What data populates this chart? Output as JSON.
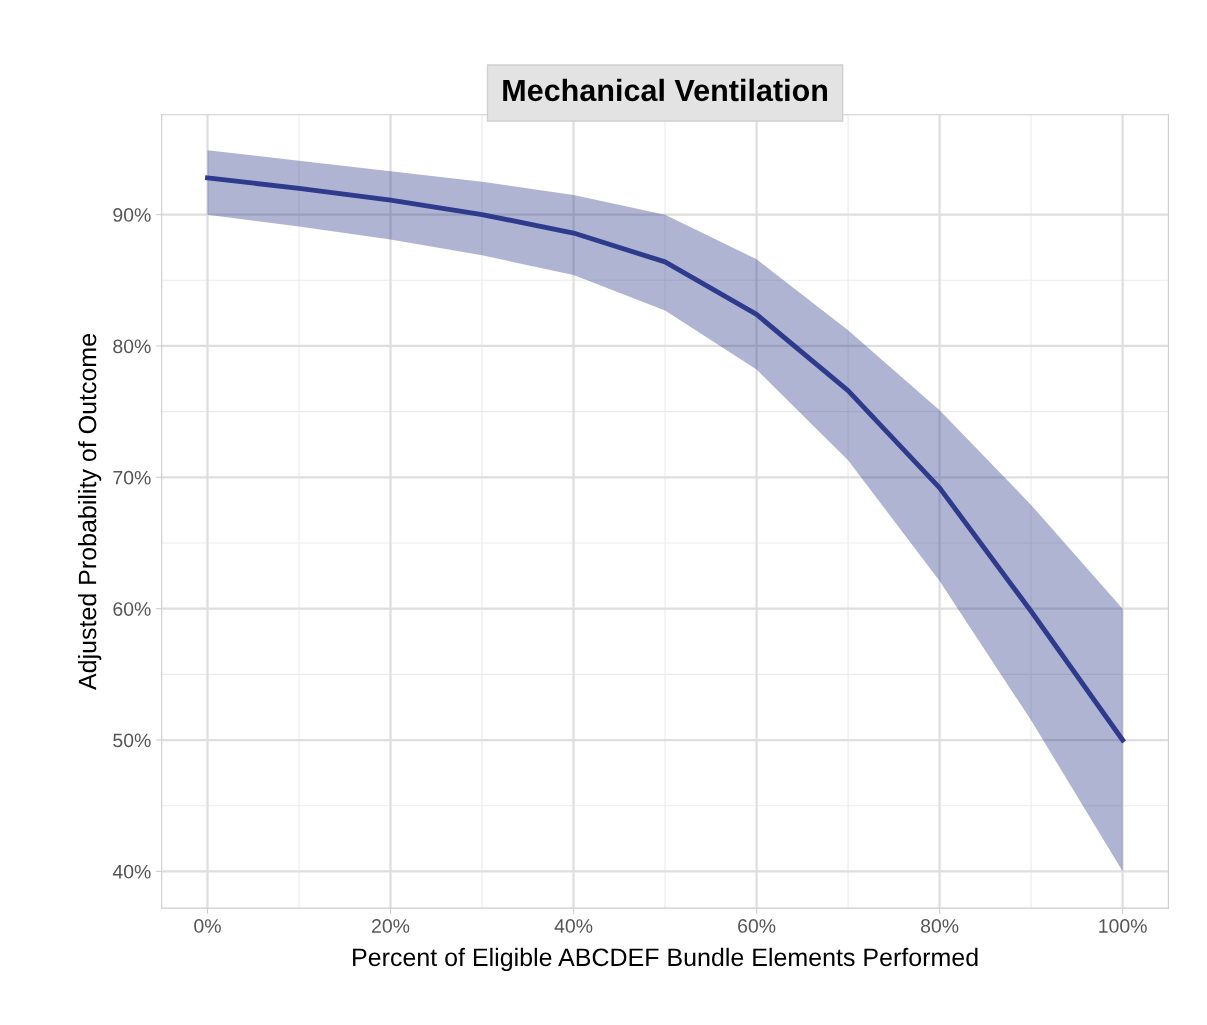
{
  "chart_data": {
    "type": "line",
    "title": "Mechanical Ventilation",
    "xlabel": "Percent of Eligible ABCDEF Bundle Elements Performed",
    "ylabel": "Adjusted Probability of Outcome",
    "x": [
      0,
      10,
      20,
      30,
      40,
      50,
      60,
      70,
      80,
      90,
      100
    ],
    "series": [
      {
        "color": "#2e3a8c",
        "values": [
          92.8,
          92.0,
          91.1,
          90.0,
          88.6,
          86.4,
          82.4,
          76.6,
          69.2,
          59.8,
          50.0
        ],
        "lower": [
          90.0,
          89.1,
          88.1,
          86.9,
          85.4,
          82.7,
          78.2,
          71.3,
          62.1,
          51.5,
          40.0
        ],
        "upper": [
          94.9,
          94.1,
          93.3,
          92.5,
          91.5,
          90.0,
          86.6,
          81.2,
          75.1,
          67.9,
          60.0
        ]
      }
    ],
    "xlim": [
      -5,
      105
    ],
    "ylim": [
      37.2,
      97.6
    ],
    "xticks": [
      {
        "value": 0,
        "label": "0%"
      },
      {
        "value": 20,
        "label": "20%"
      },
      {
        "value": 40,
        "label": "40%"
      },
      {
        "value": 60,
        "label": "60%"
      },
      {
        "value": 80,
        "label": "80%"
      },
      {
        "value": 100,
        "label": "100%"
      }
    ],
    "yticks": [
      {
        "value": 40,
        "label": "40%"
      },
      {
        "value": 50,
        "label": "50%"
      },
      {
        "value": 60,
        "label": "60%"
      },
      {
        "value": 70,
        "label": "70%"
      },
      {
        "value": 80,
        "label": "80%"
      },
      {
        "value": 90,
        "label": "90%"
      }
    ],
    "grid": true,
    "line_style": "solid",
    "marker": "none"
  }
}
